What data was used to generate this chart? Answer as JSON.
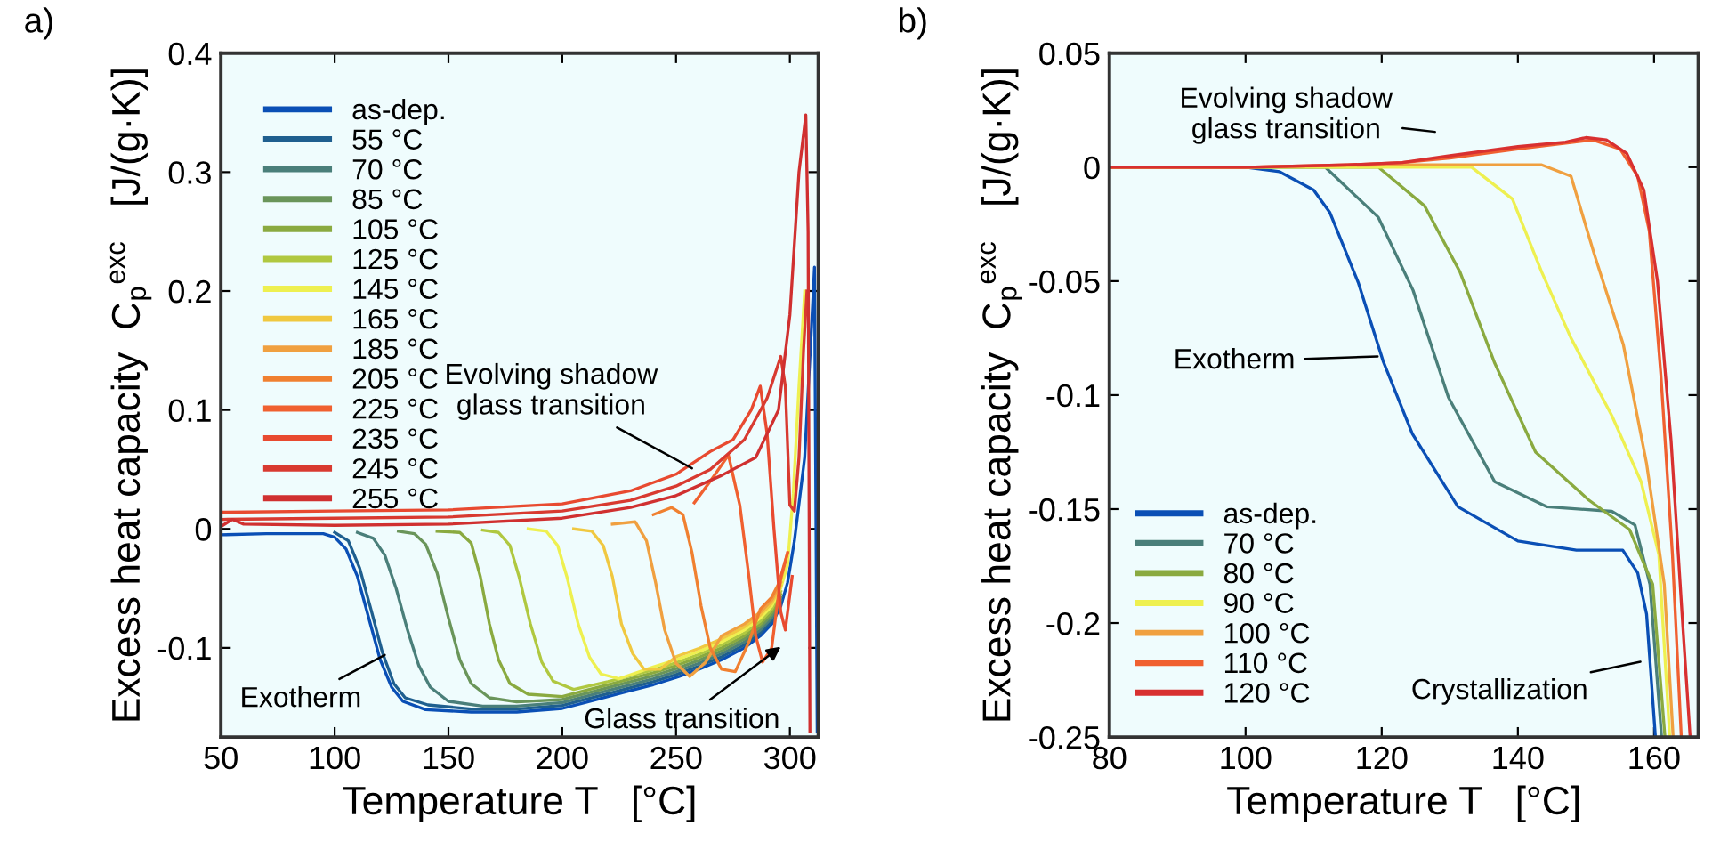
{
  "chart_data": [
    {
      "type": "line",
      "title": "a)",
      "xlabel": "Temperature T   [°C]",
      "ylabel": "Excess heat capacity  C$_{p}$$^{exc}$   [J/(g·K)]",
      "xlim": [
        50,
        312.5
      ],
      "ylim": [
        -0.175,
        0.4
      ],
      "xticks": [
        50,
        100,
        150,
        200,
        250,
        300
      ],
      "yticks": [
        -0.1,
        0,
        0.1,
        0.2,
        0.3,
        0.4
      ],
      "grid": false,
      "legend": "top left",
      "marker": "none",
      "line_style": "solid",
      "annotations": [
        {
          "text": "Evolving shadow\nglass transition",
          "x": 257,
          "y": 0.051
        },
        {
          "text": "Exotherm",
          "x": 122,
          "y": -0.106
        },
        {
          "text": "Glass transition",
          "x": 296,
          "y": -0.099
        }
      ],
      "series": [
        {
          "name": "as-dep.",
          "color": "#0a4fb5",
          "x": [
            50,
            70,
            95,
            100,
            105,
            110,
            115,
            120,
            125,
            130,
            140,
            160,
            180,
            200,
            210,
            220,
            230,
            240,
            250,
            260,
            270,
            280,
            287,
            292,
            296,
            299,
            302,
            306.5,
            309.5,
            310.8,
            312
          ],
          "values": [
            -0.005,
            -0.004,
            -0.004,
            -0.007,
            -0.017,
            -0.04,
            -0.075,
            -0.11,
            -0.133,
            -0.145,
            -0.152,
            -0.154,
            -0.154,
            -0.151,
            -0.146,
            -0.141,
            -0.136,
            -0.131,
            -0.125,
            -0.118,
            -0.11,
            -0.1,
            -0.09,
            -0.08,
            -0.065,
            -0.045,
            -0.01,
            0.06,
            0.17,
            0.22,
            -0.17
          ]
        },
        {
          "name": "55 °C",
          "color": "#1f5f8f",
          "x": [
            100,
            106,
            111,
            116,
            121,
            126,
            131,
            141,
            160,
            180,
            200,
            210,
            220,
            230,
            240,
            250,
            260,
            270,
            280,
            287,
            292,
            296
          ],
          "values": [
            -0.003,
            -0.01,
            -0.033,
            -0.068,
            -0.104,
            -0.13,
            -0.142,
            -0.148,
            -0.1515,
            -0.1515,
            -0.1485,
            -0.1435,
            -0.1385,
            -0.1335,
            -0.1285,
            -0.1225,
            -0.1155,
            -0.1075,
            -0.0975,
            -0.0875,
            -0.0775,
            -0.0625
          ]
        },
        {
          "name": "70 °C",
          "color": "#4a7f7a",
          "x": [
            110,
            117,
            122,
            127,
            132,
            137,
            142,
            150,
            165,
            180,
            200,
            210,
            220,
            230,
            240,
            250,
            260,
            270,
            280,
            287,
            292,
            296
          ],
          "values": [
            -0.003,
            -0.008,
            -0.022,
            -0.05,
            -0.085,
            -0.115,
            -0.133,
            -0.145,
            -0.149,
            -0.149,
            -0.146,
            -0.141,
            -0.136,
            -0.131,
            -0.126,
            -0.12,
            -0.113,
            -0.105,
            -0.095,
            -0.085,
            -0.075,
            -0.06
          ]
        },
        {
          "name": "85 °C",
          "color": "#6a955a",
          "x": [
            128,
            135,
            140,
            145,
            150,
            155,
            160,
            168,
            180,
            200,
            210,
            220,
            230,
            240,
            250,
            260,
            270,
            280,
            287,
            292,
            296
          ],
          "values": [
            -0.002,
            -0.004,
            -0.013,
            -0.037,
            -0.075,
            -0.11,
            -0.13,
            -0.142,
            -0.1455,
            -0.1435,
            -0.1385,
            -0.1335,
            -0.1285,
            -0.1235,
            -0.1175,
            -0.1105,
            -0.1025,
            -0.0925,
            -0.0825,
            -0.0725,
            -0.0575
          ]
        },
        {
          "name": "105 °C",
          "color": "#8aaa40",
          "x": [
            145,
            155,
            160,
            164,
            168,
            172,
            177,
            185,
            200,
            210,
            220,
            230,
            240,
            250,
            260,
            270,
            280,
            287,
            292,
            296
          ],
          "values": [
            -0.002,
            -0.003,
            -0.012,
            -0.04,
            -0.08,
            -0.11,
            -0.13,
            -0.139,
            -0.141,
            -0.136,
            -0.131,
            -0.126,
            -0.121,
            -0.115,
            -0.108,
            -0.1,
            -0.09,
            -0.08,
            -0.07,
            -0.055
          ]
        },
        {
          "name": "125 °C",
          "color": "#b0c840",
          "x": [
            165,
            172,
            177,
            181,
            186,
            191,
            196,
            205,
            220,
            230,
            240,
            250,
            260,
            270,
            280,
            287,
            292,
            296
          ],
          "values": [
            -0.001,
            -0.003,
            -0.014,
            -0.04,
            -0.08,
            -0.112,
            -0.128,
            -0.135,
            -0.1285,
            -0.1235,
            -0.1185,
            -0.1125,
            -0.1055,
            -0.0975,
            -0.0875,
            -0.0775,
            -0.0675,
            -0.0525
          ]
        },
        {
          "name": "145 °C",
          "color": "#eef050",
          "x": [
            185,
            193,
            198,
            202,
            207,
            212,
            217,
            225,
            240,
            250,
            260,
            270,
            280,
            287,
            292,
            296,
            299,
            301.5,
            304,
            306.5
          ],
          "values": [
            0.0,
            -0.002,
            -0.014,
            -0.04,
            -0.08,
            -0.108,
            -0.122,
            -0.126,
            -0.116,
            -0.11,
            -0.103,
            -0.095,
            -0.085,
            -0.075,
            -0.065,
            -0.05,
            -0.03,
            0.03,
            0.12,
            0.2
          ]
        },
        {
          "name": "165 °C",
          "color": "#f0c840",
          "x": [
            205,
            213,
            218,
            222,
            226,
            231,
            236,
            243,
            250,
            260,
            270,
            280,
            287,
            292,
            296
          ],
          "values": [
            0.0,
            -0.002,
            -0.014,
            -0.04,
            -0.08,
            -0.105,
            -0.118,
            -0.118,
            -0.1075,
            -0.1005,
            -0.0925,
            -0.0825,
            -0.0725,
            -0.0625,
            -0.0475
          ]
        },
        {
          "name": "185 °C",
          "color": "#f0a040",
          "x": [
            222,
            232,
            237,
            241,
            245,
            250,
            256,
            263,
            270,
            280,
            287,
            292,
            296
          ],
          "values": [
            0.004,
            0.006,
            -0.01,
            -0.045,
            -0.085,
            -0.113,
            -0.124,
            -0.112,
            -0.09,
            -0.08,
            -0.07,
            -0.06,
            -0.045
          ]
        },
        {
          "name": "205 °C",
          "color": "#f08030",
          "x": [
            240,
            248,
            253,
            257,
            261,
            265,
            270,
            276,
            282,
            287,
            292,
            296,
            299
          ],
          "values": [
            0.012,
            0.018,
            0.012,
            -0.02,
            -0.065,
            -0.1,
            -0.118,
            -0.12,
            -0.095,
            -0.0675,
            -0.0575,
            -0.0425,
            -0.02
          ]
        },
        {
          "name": "225 °C",
          "color": "#f06030",
          "x": [
            258,
            265,
            273,
            278,
            282,
            285,
            288,
            292,
            296,
            299
          ],
          "values": [
            0.022,
            0.04,
            0.062,
            0.02,
            -0.04,
            -0.09,
            -0.112,
            -0.1,
            -0.04,
            -0.02
          ]
        },
        {
          "name": "235 °C",
          "color": "#e84a30",
          "x": [
            50,
            100,
            150,
            200,
            230,
            250,
            265,
            275,
            283,
            287,
            290,
            293,
            296,
            298,
            301
          ],
          "values": [
            0.014,
            0.015,
            0.016,
            0.021,
            0.032,
            0.046,
            0.065,
            0.075,
            0.1,
            0.12,
            0.08,
            0.0,
            -0.07,
            -0.085,
            -0.04
          ]
        },
        {
          "name": "245 °C",
          "color": "#d83a30",
          "x": [
            50,
            100,
            150,
            200,
            230,
            250,
            265,
            280,
            290,
            296,
            298,
            300,
            302,
            304,
            306,
            307.5
          ],
          "values": [
            0.008,
            0.009,
            0.01,
            0.015,
            0.024,
            0.036,
            0.05,
            0.075,
            0.11,
            0.145,
            0.12,
            0.02,
            0.015,
            0.06,
            0.15,
            0.2
          ]
        },
        {
          "name": "255 °C",
          "color": "#d03030",
          "x": [
            50,
            55,
            60,
            100,
            150,
            200,
            230,
            250,
            270,
            285,
            295,
            300,
            304,
            307,
            308,
            308.8
          ],
          "values": [
            0.002,
            0.008,
            0.004,
            0.003,
            0.004,
            0.009,
            0.018,
            0.028,
            0.045,
            0.06,
            0.1,
            0.18,
            0.3,
            0.348,
            0.25,
            -0.17
          ]
        }
      ]
    },
    {
      "type": "line",
      "title": "b)",
      "xlabel": "Temperature T   [°C]",
      "ylabel": "Excess heat capacity  C$_{p}$$^{exc}$   [J/(g·K)]",
      "xlim": [
        80,
        166.5
      ],
      "ylim": [
        -0.25,
        0.05
      ],
      "xticks": [
        80,
        100,
        120,
        140,
        160
      ],
      "yticks": [
        -0.25,
        -0.2,
        -0.15,
        -0.1,
        -0.05,
        0,
        0.05
      ],
      "grid": false,
      "legend": "bottom left",
      "marker": "none",
      "line_style": "solid",
      "annotations": [
        "Evolving shadow\nglass transition",
        {
          "text": "Exotherm",
          "x": 119.4,
          "y": -0.083
        },
        {
          "text": "Crystallization",
          "x": 158,
          "y": -0.217
        }
      ],
      "series": [
        {
          "name": "as-dep.",
          "color": "#0a4fb5",
          "x": [
            80,
            100,
            105,
            110,
            112.4,
            116.6,
            120.2,
            124.5,
            131.2,
            140,
            148.6,
            155.4,
            157.6,
            158.9,
            160.2
          ],
          "values": [
            0,
            0,
            -0.002,
            -0.01,
            -0.02,
            -0.051,
            -0.085,
            -0.117,
            -0.149,
            -0.164,
            -0.168,
            -0.168,
            -0.178,
            -0.196,
            -0.25
          ]
        },
        {
          "name": "70 °C",
          "color": "#4a7f7a",
          "x": [
            80,
            100,
            111.7,
            119.5,
            124.6,
            129.8,
            136.6,
            144.3,
            153.8,
            157.2,
            159.4,
            161.1
          ],
          "values": [
            0,
            0,
            0,
            -0.022,
            -0.054,
            -0.101,
            -0.138,
            -0.149,
            -0.151,
            -0.157,
            -0.183,
            -0.25
          ]
        },
        {
          "name": "80 °C",
          "color": "#8aaa40",
          "x": [
            80,
            100,
            119.5,
            126.3,
            131.5,
            136.6,
            142.6,
            150.4,
            156.4,
            159.8,
            161.6
          ],
          "values": [
            0,
            0,
            0,
            -0.017,
            -0.046,
            -0.086,
            -0.125,
            -0.146,
            -0.159,
            -0.183,
            -0.25
          ]
        },
        {
          "name": "90 °C",
          "color": "#eef050",
          "x": [
            80,
            100,
            120,
            133.2,
            139.2,
            143.5,
            147.8,
            153.8,
            158.1,
            160.7,
            162.3
          ],
          "values": [
            0,
            0,
            0,
            0,
            -0.014,
            -0.046,
            -0.075,
            -0.109,
            -0.138,
            -0.17,
            -0.25
          ]
        },
        {
          "name": "100 °C",
          "color": "#f0a040",
          "x": [
            80,
            100,
            120,
            135,
            143.5,
            147.8,
            151.2,
            155.5,
            158.9,
            161.5,
            162.8
          ],
          "values": [
            0,
            0,
            0.001,
            0.001,
            0.001,
            -0.004,
            -0.038,
            -0.078,
            -0.13,
            -0.183,
            -0.25
          ]
        },
        {
          "name": "110 °C",
          "color": "#f06030",
          "x": [
            80,
            100,
            115,
            123,
            130,
            140,
            147,
            151,
            155,
            157.6,
            159.3,
            161,
            162.7,
            164
          ],
          "values": [
            0,
            0,
            0.001,
            0.002,
            0.004,
            0.008,
            0.0105,
            0.012,
            0.008,
            -0.004,
            -0.028,
            -0.091,
            -0.17,
            -0.25
          ]
        },
        {
          "name": "120 °C",
          "color": "#d83030",
          "x": [
            80,
            100,
            115,
            123,
            130,
            140,
            147,
            150,
            153,
            156,
            158.5,
            160.5,
            162.5,
            164.2,
            165.3
          ],
          "values": [
            0,
            0,
            0.001,
            0.002,
            0.005,
            0.009,
            0.011,
            0.013,
            0.012,
            0.006,
            -0.01,
            -0.05,
            -0.12,
            -0.2,
            -0.25
          ]
        }
      ]
    }
  ]
}
